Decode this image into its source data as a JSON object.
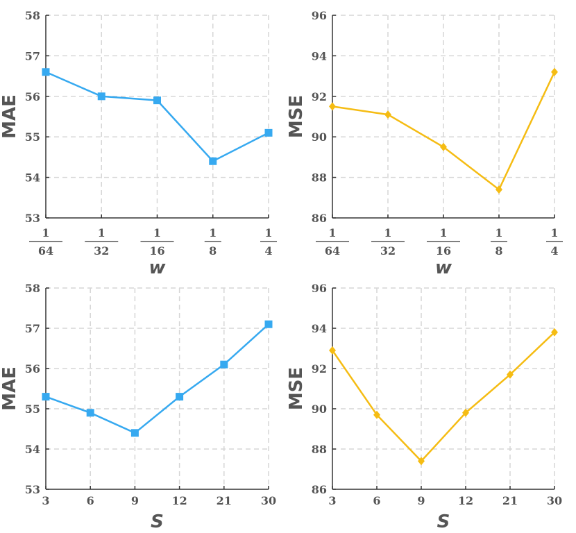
{
  "chart_data": [
    {
      "type": "line",
      "xlabel": "w",
      "ylabel": "MAE",
      "categories": [
        {
          "num": "1",
          "den": "64"
        },
        {
          "num": "1",
          "den": "32"
        },
        {
          "num": "1",
          "den": "16"
        },
        {
          "num": "1",
          "den": "8"
        },
        {
          "num": "1",
          "den": "4"
        }
      ],
      "values": [
        56.6,
        56.0,
        55.9,
        54.4,
        55.1
      ],
      "yticks": [
        "53",
        "54",
        "55",
        "56",
        "57",
        "58"
      ],
      "ylim": [
        53,
        58
      ],
      "grid": true,
      "marker": "square",
      "color": "#36A9F0"
    },
    {
      "type": "line",
      "xlabel": "w",
      "ylabel": "MSE",
      "categories": [
        {
          "num": "1",
          "den": "64"
        },
        {
          "num": "1",
          "den": "32"
        },
        {
          "num": "1",
          "den": "16"
        },
        {
          "num": "1",
          "den": "8"
        },
        {
          "num": "1",
          "den": "4"
        }
      ],
      "values": [
        91.5,
        91.1,
        89.5,
        87.4,
        93.2
      ],
      "yticks": [
        "86",
        "88",
        "90",
        "92",
        "94",
        "96"
      ],
      "ylim": [
        86,
        96
      ],
      "grid": true,
      "marker": "diamond",
      "color": "#F5BC13"
    },
    {
      "type": "line",
      "xlabel": "S",
      "ylabel": "MAE",
      "categories": [
        "3",
        "6",
        "9",
        "12",
        "21",
        "30"
      ],
      "values": [
        55.3,
        54.9,
        54.4,
        55.3,
        56.1,
        57.1
      ],
      "yticks": [
        "53",
        "54",
        "55",
        "56",
        "57",
        "58"
      ],
      "ylim": [
        53,
        58
      ],
      "grid": true,
      "marker": "square",
      "color": "#36A9F0"
    },
    {
      "type": "line",
      "xlabel": "S",
      "ylabel": "MSE",
      "categories": [
        "3",
        "6",
        "9",
        "12",
        "21",
        "30"
      ],
      "values": [
        92.9,
        89.7,
        87.4,
        89.8,
        91.7,
        93.8
      ],
      "yticks": [
        "86",
        "88",
        "90",
        "92",
        "94",
        "96"
      ],
      "ylim": [
        86,
        96
      ],
      "grid": true,
      "marker": "diamond",
      "color": "#F5BC13"
    }
  ]
}
